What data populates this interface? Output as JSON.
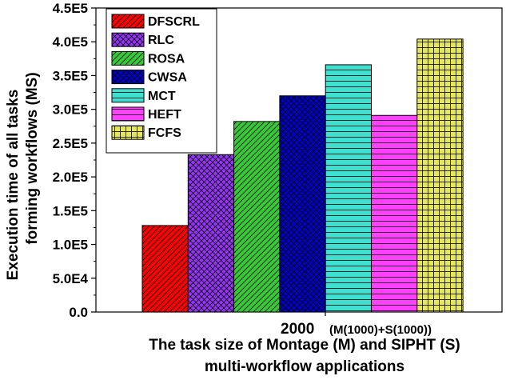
{
  "chart_data": {
    "type": "bar",
    "categories": [
      "2000 (M(1000)+S(1000))"
    ],
    "category_label_main": "2000",
    "category_label_sub": "(M(1000)+S(1000))",
    "series": [
      {
        "name": "DFSCRL",
        "values": [
          128000
        ],
        "color": "#ff0000",
        "pattern": "diagonal"
      },
      {
        "name": "RLC",
        "values": [
          233000
        ],
        "color": "#9b30ff",
        "pattern": "crosshatch"
      },
      {
        "name": "ROSA",
        "values": [
          282000
        ],
        "color": "#33cc33",
        "pattern": "diagonal"
      },
      {
        "name": "CWSA",
        "values": [
          320000
        ],
        "color": "#0000cd",
        "pattern": "crosshatch"
      },
      {
        "name": "MCT",
        "values": [
          366000
        ],
        "color": "#40e0d0",
        "pattern": "horizontal"
      },
      {
        "name": "HEFT",
        "values": [
          291000
        ],
        "color": "#ff40ff",
        "pattern": "horizontal"
      },
      {
        "name": "FCFS",
        "values": [
          404000
        ],
        "color": "#e6e65c",
        "pattern": "grid"
      }
    ],
    "ylim": [
      0,
      450000
    ],
    "yticks": [
      {
        "value": 0,
        "label": "0.0"
      },
      {
        "value": 50000,
        "label": "5.0E4"
      },
      {
        "value": 100000,
        "label": "1.0E5"
      },
      {
        "value": 150000,
        "label": "1.5E5"
      },
      {
        "value": 200000,
        "label": "2.0E5"
      },
      {
        "value": 250000,
        "label": "2.5E5"
      },
      {
        "value": 300000,
        "label": "3.0E5"
      },
      {
        "value": 350000,
        "label": "3.5E5"
      },
      {
        "value": 400000,
        "label": "4.0E5"
      },
      {
        "value": 450000,
        "label": "4.5E5"
      }
    ],
    "ylabel_line1": "Execution time of all tasks",
    "ylabel_line2": "forming  workflows  (MS)",
    "xlabel_line1": "The task size of Montage (M) and SIPHT (S)",
    "xlabel_line2": "multi-workflow applications",
    "legend_position": "top-left"
  }
}
